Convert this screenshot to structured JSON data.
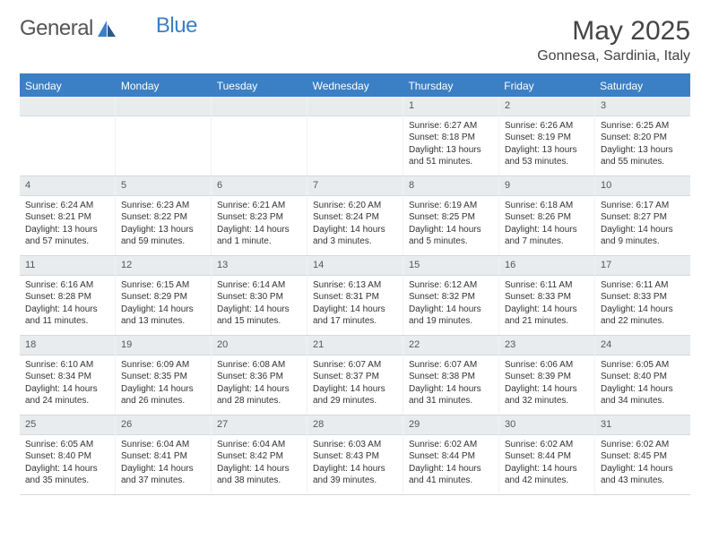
{
  "brand": {
    "part1": "General",
    "part2": "Blue"
  },
  "title": "May 2025",
  "location": "Gonnesa, Sardinia, Italy",
  "colors": {
    "header_bg": "#3b7fc4",
    "daynum_bg": "#e8ecef",
    "border": "#d8d8d8",
    "text": "#333333"
  },
  "day_headers": [
    "Sunday",
    "Monday",
    "Tuesday",
    "Wednesday",
    "Thursday",
    "Friday",
    "Saturday"
  ],
  "weeks": [
    [
      null,
      null,
      null,
      null,
      {
        "n": "1",
        "sr": "6:27 AM",
        "ss": "8:18 PM",
        "dl": "13 hours and 51 minutes."
      },
      {
        "n": "2",
        "sr": "6:26 AM",
        "ss": "8:19 PM",
        "dl": "13 hours and 53 minutes."
      },
      {
        "n": "3",
        "sr": "6:25 AM",
        "ss": "8:20 PM",
        "dl": "13 hours and 55 minutes."
      }
    ],
    [
      {
        "n": "4",
        "sr": "6:24 AM",
        "ss": "8:21 PM",
        "dl": "13 hours and 57 minutes."
      },
      {
        "n": "5",
        "sr": "6:23 AM",
        "ss": "8:22 PM",
        "dl": "13 hours and 59 minutes."
      },
      {
        "n": "6",
        "sr": "6:21 AM",
        "ss": "8:23 PM",
        "dl": "14 hours and 1 minute."
      },
      {
        "n": "7",
        "sr": "6:20 AM",
        "ss": "8:24 PM",
        "dl": "14 hours and 3 minutes."
      },
      {
        "n": "8",
        "sr": "6:19 AM",
        "ss": "8:25 PM",
        "dl": "14 hours and 5 minutes."
      },
      {
        "n": "9",
        "sr": "6:18 AM",
        "ss": "8:26 PM",
        "dl": "14 hours and 7 minutes."
      },
      {
        "n": "10",
        "sr": "6:17 AM",
        "ss": "8:27 PM",
        "dl": "14 hours and 9 minutes."
      }
    ],
    [
      {
        "n": "11",
        "sr": "6:16 AM",
        "ss": "8:28 PM",
        "dl": "14 hours and 11 minutes."
      },
      {
        "n": "12",
        "sr": "6:15 AM",
        "ss": "8:29 PM",
        "dl": "14 hours and 13 minutes."
      },
      {
        "n": "13",
        "sr": "6:14 AM",
        "ss": "8:30 PM",
        "dl": "14 hours and 15 minutes."
      },
      {
        "n": "14",
        "sr": "6:13 AM",
        "ss": "8:31 PM",
        "dl": "14 hours and 17 minutes."
      },
      {
        "n": "15",
        "sr": "6:12 AM",
        "ss": "8:32 PM",
        "dl": "14 hours and 19 minutes."
      },
      {
        "n": "16",
        "sr": "6:11 AM",
        "ss": "8:33 PM",
        "dl": "14 hours and 21 minutes."
      },
      {
        "n": "17",
        "sr": "6:11 AM",
        "ss": "8:33 PM",
        "dl": "14 hours and 22 minutes."
      }
    ],
    [
      {
        "n": "18",
        "sr": "6:10 AM",
        "ss": "8:34 PM",
        "dl": "14 hours and 24 minutes."
      },
      {
        "n": "19",
        "sr": "6:09 AM",
        "ss": "8:35 PM",
        "dl": "14 hours and 26 minutes."
      },
      {
        "n": "20",
        "sr": "6:08 AM",
        "ss": "8:36 PM",
        "dl": "14 hours and 28 minutes."
      },
      {
        "n": "21",
        "sr": "6:07 AM",
        "ss": "8:37 PM",
        "dl": "14 hours and 29 minutes."
      },
      {
        "n": "22",
        "sr": "6:07 AM",
        "ss": "8:38 PM",
        "dl": "14 hours and 31 minutes."
      },
      {
        "n": "23",
        "sr": "6:06 AM",
        "ss": "8:39 PM",
        "dl": "14 hours and 32 minutes."
      },
      {
        "n": "24",
        "sr": "6:05 AM",
        "ss": "8:40 PM",
        "dl": "14 hours and 34 minutes."
      }
    ],
    [
      {
        "n": "25",
        "sr": "6:05 AM",
        "ss": "8:40 PM",
        "dl": "14 hours and 35 minutes."
      },
      {
        "n": "26",
        "sr": "6:04 AM",
        "ss": "8:41 PM",
        "dl": "14 hours and 37 minutes."
      },
      {
        "n": "27",
        "sr": "6:04 AM",
        "ss": "8:42 PM",
        "dl": "14 hours and 38 minutes."
      },
      {
        "n": "28",
        "sr": "6:03 AM",
        "ss": "8:43 PM",
        "dl": "14 hours and 39 minutes."
      },
      {
        "n": "29",
        "sr": "6:02 AM",
        "ss": "8:44 PM",
        "dl": "14 hours and 41 minutes."
      },
      {
        "n": "30",
        "sr": "6:02 AM",
        "ss": "8:44 PM",
        "dl": "14 hours and 42 minutes."
      },
      {
        "n": "31",
        "sr": "6:02 AM",
        "ss": "8:45 PM",
        "dl": "14 hours and 43 minutes."
      }
    ]
  ],
  "labels": {
    "sunrise": "Sunrise:",
    "sunset": "Sunset:",
    "daylight": "Daylight:"
  }
}
